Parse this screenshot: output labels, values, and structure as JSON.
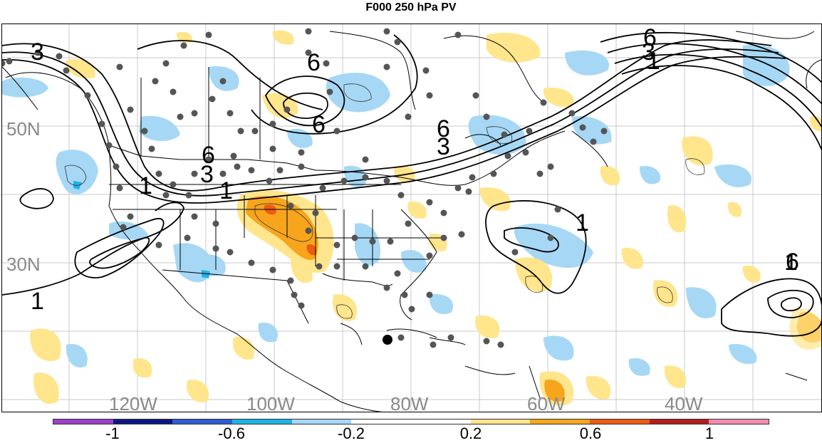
{
  "title": "F000 250 hPa PV",
  "lat_labels": [
    "50N",
    "30N"
  ],
  "lon_labels": [
    "120W",
    "100W",
    "80W",
    "60W",
    "40W"
  ],
  "contour_labels": [
    "3",
    "6",
    "6",
    "6",
    "6",
    "3",
    "6",
    "3",
    "1",
    "1",
    "1",
    "1",
    "1",
    "6",
    "3",
    "1"
  ],
  "colorbar": {
    "colors": [
      "#9e3fc9",
      "#0b1780",
      "#2f5cd1",
      "#1eb3e8",
      "#a6d8f5",
      "#ffffff",
      "#ffffff",
      "#ffe58c",
      "#f7a51c",
      "#ed5b12",
      "#b31d1d",
      "#f58bb0"
    ],
    "tick_labels": [
      "-1",
      "-0.6",
      "-0.2",
      "0.2",
      "0.6",
      "1"
    ]
  },
  "colors": {
    "positive_light": "#ffe58c",
    "positive_mid": "#f7a51c",
    "positive_strong": "#ed5b12",
    "negative_light": "#a6d8f5",
    "negative_mid": "#1eb3e8",
    "station_dot": "#555555",
    "marker": "#000000"
  }
}
